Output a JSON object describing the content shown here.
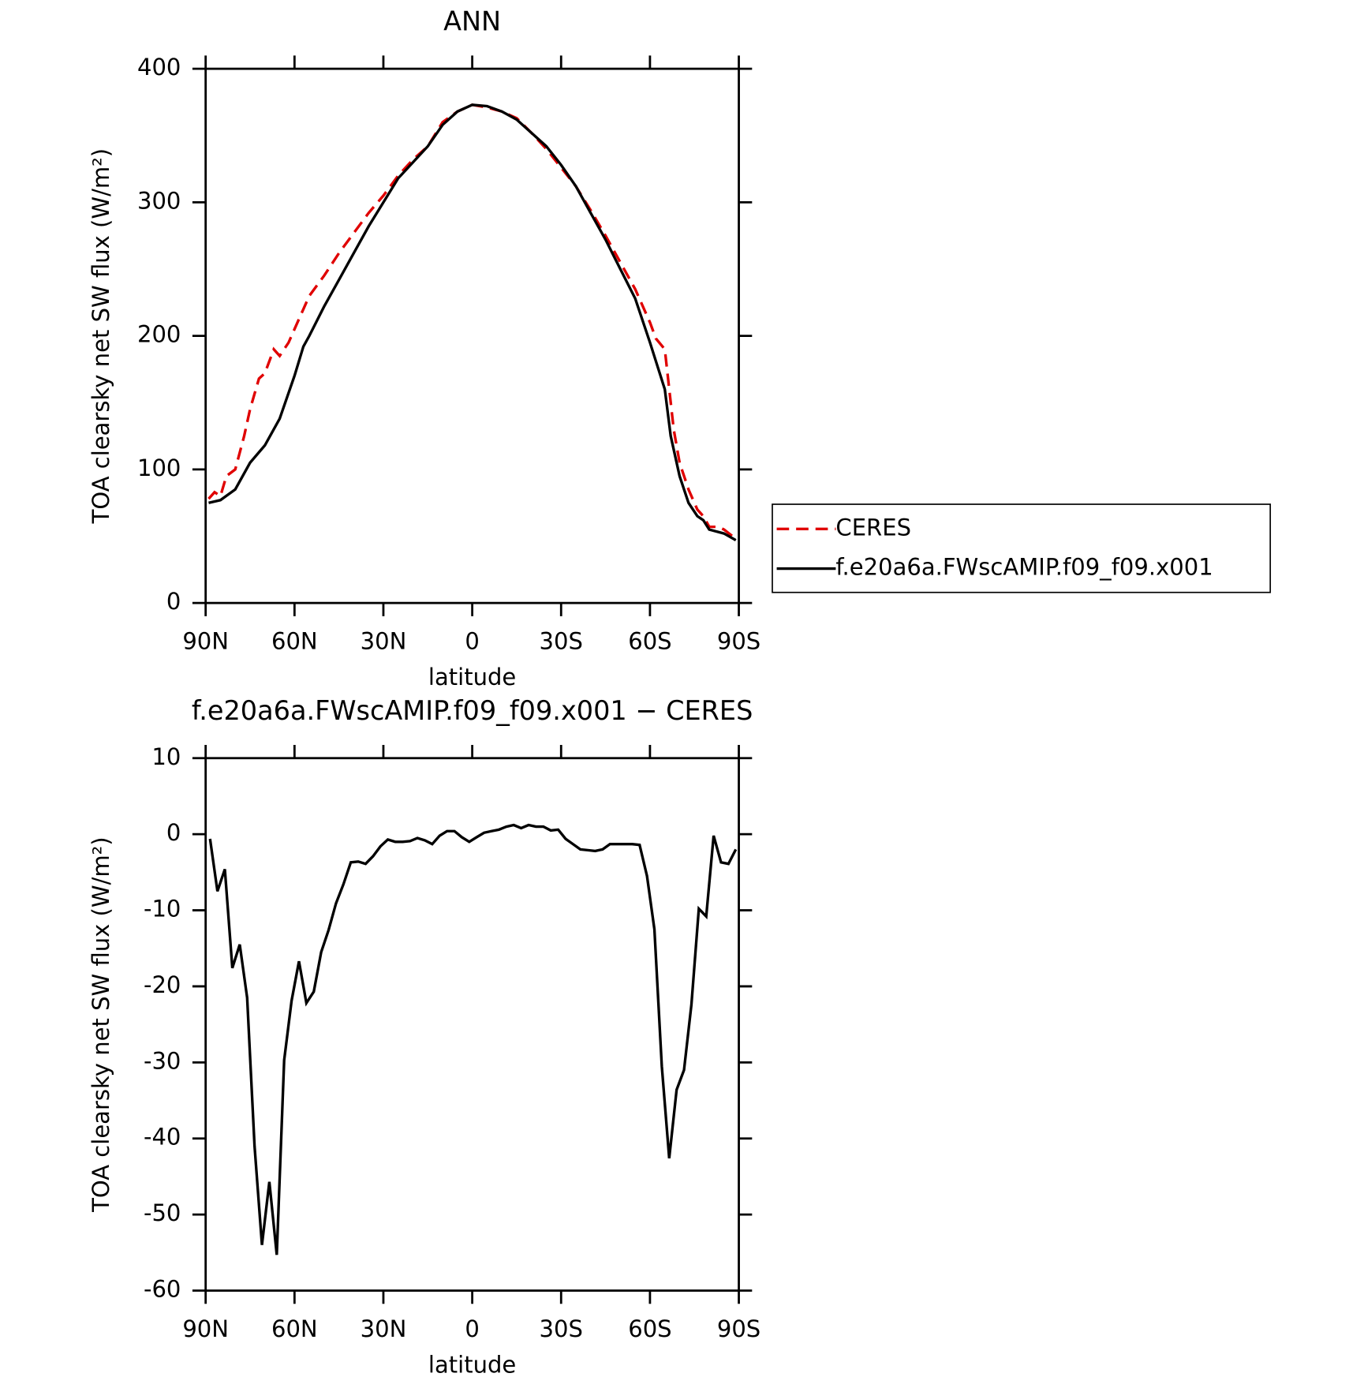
{
  "chart_data": [
    {
      "type": "line",
      "title": "ANN",
      "xlabel": "latitude",
      "ylabel": "TOA clearsky net SW flux (W/m²)",
      "xlim": [
        90,
        -90
      ],
      "xticks": [
        {
          "value": 90,
          "label": "90N"
        },
        {
          "value": 60,
          "label": "60N"
        },
        {
          "value": 30,
          "label": "30N"
        },
        0,
        {
          "value": -30,
          "label": "30S"
        },
        {
          "value": -60,
          "label": "60S"
        },
        {
          "value": -90,
          "label": "90S"
        }
      ],
      "ylim": [
        0,
        400
      ],
      "yticks": [
        0,
        100,
        200,
        300,
        400
      ],
      "legend": "right",
      "series": [
        {
          "name": "CERES",
          "color": "#e00000",
          "dash": true,
          "x": [
            89,
            87,
            85,
            83,
            80,
            77,
            75,
            72,
            70,
            67,
            65,
            62,
            60,
            57,
            55,
            50,
            45,
            40,
            35,
            30,
            25,
            20,
            15,
            10,
            5,
            0,
            -5,
            -10,
            -15,
            -20,
            -25,
            -30,
            -35,
            -40,
            -45,
            -50,
            -55,
            -60,
            -62,
            -65,
            -68,
            -70,
            -73,
            -76,
            -78,
            -80,
            -83,
            -85,
            -89
          ],
          "values": [
            78,
            83,
            80,
            95,
            100,
            125,
            145,
            168,
            172,
            190,
            185,
            195,
            205,
            220,
            230,
            245,
            262,
            277,
            292,
            305,
            320,
            332,
            342,
            360,
            368,
            373,
            371,
            368,
            363,
            352,
            340,
            326,
            312,
            294,
            275,
            255,
            235,
            210,
            198,
            190,
            130,
            105,
            85,
            70,
            65,
            57,
            57,
            55,
            48
          ]
        },
        {
          "name": "f.e20a6a.FWscAMIP.f09_f09.x001",
          "color": "#000000",
          "dash": false,
          "x": [
            89,
            85,
            80,
            75,
            70,
            65,
            60,
            57,
            55,
            50,
            45,
            40,
            35,
            30,
            25,
            20,
            15,
            10,
            5,
            0,
            -5,
            -10,
            -15,
            -20,
            -25,
            -30,
            -35,
            -40,
            -45,
            -50,
            -55,
            -60,
            -65,
            -67,
            -70,
            -73,
            -76,
            -78,
            -80,
            -85,
            -89
          ],
          "values": [
            75,
            77,
            85,
            105,
            118,
            138,
            170,
            192,
            200,
            222,
            242,
            262,
            282,
            300,
            318,
            330,
            342,
            358,
            368,
            373,
            372,
            368,
            362,
            352,
            342,
            328,
            312,
            292,
            272,
            250,
            228,
            195,
            160,
            125,
            95,
            75,
            65,
            62,
            55,
            52,
            47
          ]
        }
      ]
    },
    {
      "type": "line",
      "title": "f.e20a6a.FWscAMIP.f09_f09.x001 − CERES",
      "xlabel": "latitude",
      "ylabel": "TOA clearsky net SW flux (W/m²)",
      "xlim": [
        90,
        -90
      ],
      "xticks": [
        {
          "value": 90,
          "label": "90N"
        },
        {
          "value": 60,
          "label": "60N"
        },
        {
          "value": 30,
          "label": "30N"
        },
        0,
        {
          "value": -30,
          "label": "30S"
        },
        {
          "value": -60,
          "label": "60S"
        },
        {
          "value": -90,
          "label": "90S"
        }
      ],
      "ylim": [
        -60,
        10
      ],
      "yticks": [
        -60,
        -50,
        -40,
        -30,
        -20,
        -10,
        0,
        10
      ],
      "series": [
        {
          "color": "#000000",
          "dash": false,
          "x": [
            88.5,
            86,
            83.5,
            81,
            78.5,
            76,
            73.5,
            71,
            68.5,
            66,
            63.5,
            61,
            58.5,
            56,
            53.5,
            51,
            48.5,
            46,
            43.5,
            41,
            38.5,
            36,
            33.5,
            31,
            28.5,
            26,
            23.5,
            21,
            18.5,
            16,
            13.5,
            11,
            8.5,
            6,
            3.5,
            1,
            -1.5,
            -4,
            -6.5,
            -9,
            -11.5,
            -14,
            -16.5,
            -19,
            -21.5,
            -24,
            -26.5,
            -29,
            -31.5,
            -34,
            -36.5,
            -39,
            -41.5,
            -44,
            -46.5,
            -49,
            -51.5,
            -54,
            -56.5,
            -59,
            -61.5,
            -64,
            -66.5,
            -69,
            -71.5,
            -74,
            -76.5,
            -79,
            -81.5,
            -84,
            -86.5,
            -89
          ],
          "values": [
            -0.6,
            -7.5,
            -4.6,
            -17.6,
            -14.5,
            -21.5,
            -41,
            -54,
            -45.7,
            -55.3,
            -29.7,
            -21.9,
            -16.7,
            -22.2,
            -20.7,
            -15.5,
            -12.6,
            -9.1,
            -6.6,
            -3.7,
            -3.6,
            -3.9,
            -2.9,
            -1.6,
            -0.7,
            -1.0,
            -1.0,
            -0.9,
            -0.5,
            -0.8,
            -1.3,
            -0.2,
            0.4,
            0.4,
            -0.4,
            -1.0,
            -0.4,
            0.2,
            0.4,
            0.6,
            1.0,
            1.2,
            0.8,
            1.2,
            1.0,
            1.0,
            0.5,
            0.6,
            -0.6,
            -1.3,
            -2.0,
            -2.1,
            -2.2,
            -2.0,
            -1.3,
            -1.3,
            -1.3,
            -1.3,
            -1.4,
            -5.5,
            -12.5,
            -30.5,
            -42.6,
            -33.6,
            -31,
            -22.4,
            -9.8,
            -10.8,
            -0.2,
            -3.7,
            -3.9,
            -2.0
          ]
        }
      ]
    }
  ]
}
